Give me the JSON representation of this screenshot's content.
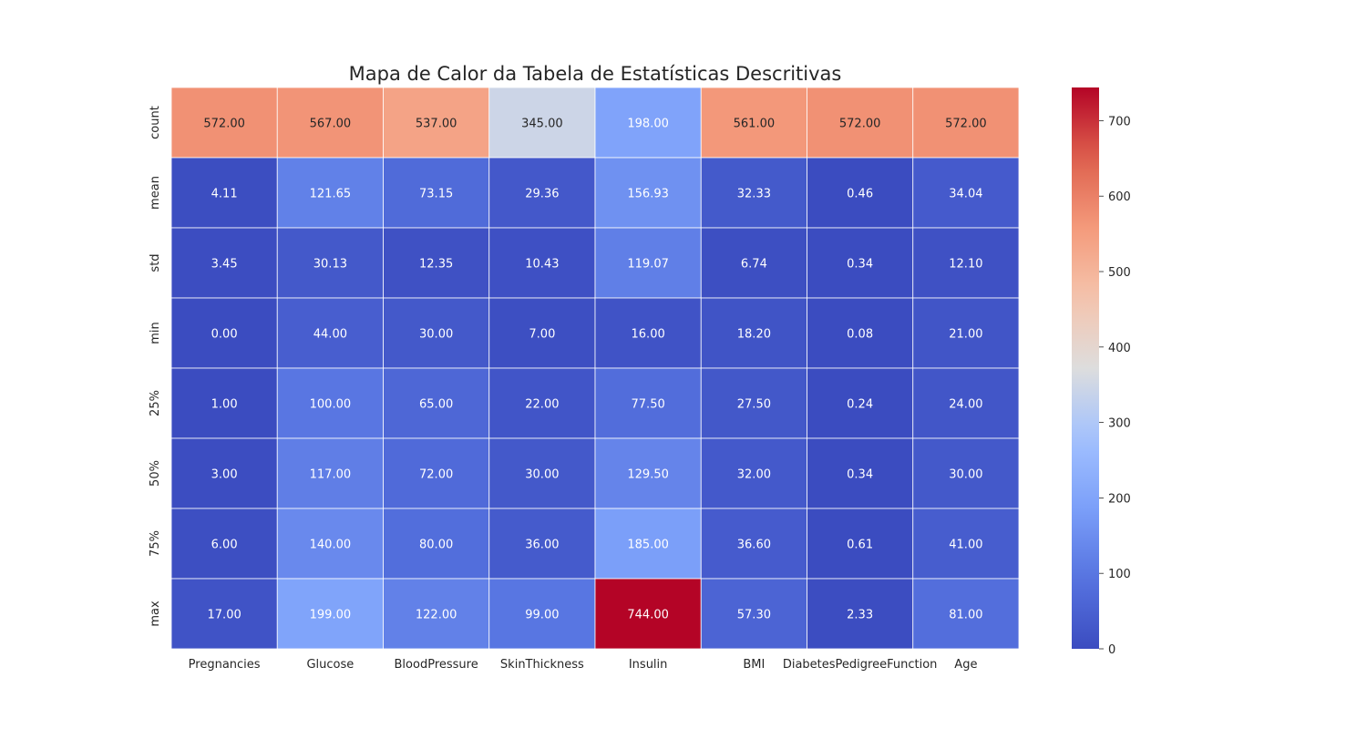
{
  "chart_data": {
    "type": "heatmap",
    "title": "Mapa de Calor da Tabela de Estatísticas Descritivas",
    "columns": [
      "Pregnancies",
      "Glucose",
      "BloodPressure",
      "SkinThickness",
      "Insulin",
      "BMI",
      "DiabetesPedigreeFunction",
      "Age"
    ],
    "rows": [
      "count",
      "mean",
      "std",
      "min",
      "25%",
      "50%",
      "75%",
      "max"
    ],
    "values": [
      [
        572.0,
        567.0,
        537.0,
        345.0,
        198.0,
        561.0,
        572.0,
        572.0
      ],
      [
        4.11,
        121.65,
        73.15,
        29.36,
        156.93,
        32.33,
        0.46,
        34.04
      ],
      [
        3.45,
        30.13,
        12.35,
        10.43,
        119.07,
        6.74,
        0.34,
        12.1
      ],
      [
        0.0,
        44.0,
        30.0,
        7.0,
        16.0,
        18.2,
        0.08,
        21.0
      ],
      [
        1.0,
        100.0,
        65.0,
        22.0,
        77.5,
        27.5,
        0.24,
        24.0
      ],
      [
        3.0,
        117.0,
        72.0,
        30.0,
        129.5,
        32.0,
        0.34,
        30.0
      ],
      [
        6.0,
        140.0,
        80.0,
        36.0,
        185.0,
        36.6,
        0.61,
        41.0
      ],
      [
        17.0,
        199.0,
        122.0,
        99.0,
        744.0,
        57.3,
        2.33,
        81.0
      ]
    ],
    "value_format_decimals": 2,
    "colormap": "coolwarm",
    "vmin": 0,
    "vmax": 744,
    "colorbar": {
      "ticks": [
        0,
        100,
        200,
        300,
        400,
        500,
        600,
        700
      ]
    }
  }
}
